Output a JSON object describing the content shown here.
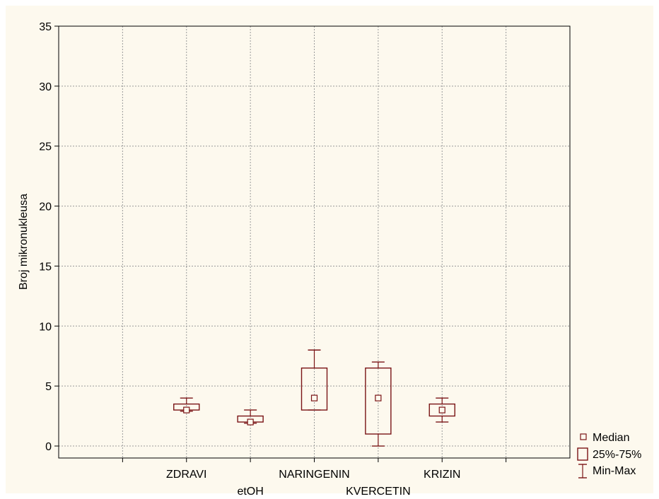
{
  "chart_data": {
    "type": "boxplot",
    "title": "",
    "xlabel": "",
    "ylabel": "Broj mikronukleusa",
    "ylim": [
      -1,
      35
    ],
    "yticks": [
      0,
      5,
      10,
      15,
      20,
      25,
      30,
      35
    ],
    "grid": true,
    "legend_position": "bottom-right",
    "color": "#7a1416",
    "categories": [
      "ZDRAVI",
      "etOH",
      "NARINGENIN",
      "KVERCETIN",
      "KRIZIN"
    ],
    "boxes": [
      {
        "category": "ZDRAVI",
        "min": 2.9,
        "q1": 3.0,
        "median": 3.0,
        "q3": 3.5,
        "max": 4.0
      },
      {
        "category": "etOH",
        "min": 1.9,
        "q1": 2.0,
        "median": 2.0,
        "q3": 2.5,
        "max": 3.0
      },
      {
        "category": "NARINGENIN",
        "min": 3.0,
        "q1": 3.0,
        "median": 4.0,
        "q3": 6.5,
        "max": 8.0
      },
      {
        "category": "KVERCETIN",
        "min": 0.0,
        "q1": 1.0,
        "median": 4.0,
        "q3": 6.5,
        "max": 7.0
      },
      {
        "category": "KRIZIN",
        "min": 2.0,
        "q1": 2.5,
        "median": 3.0,
        "q3": 3.5,
        "max": 4.0
      }
    ],
    "legend": {
      "median": "Median",
      "box": "25%-75%",
      "whisker": "Min-Max"
    }
  }
}
